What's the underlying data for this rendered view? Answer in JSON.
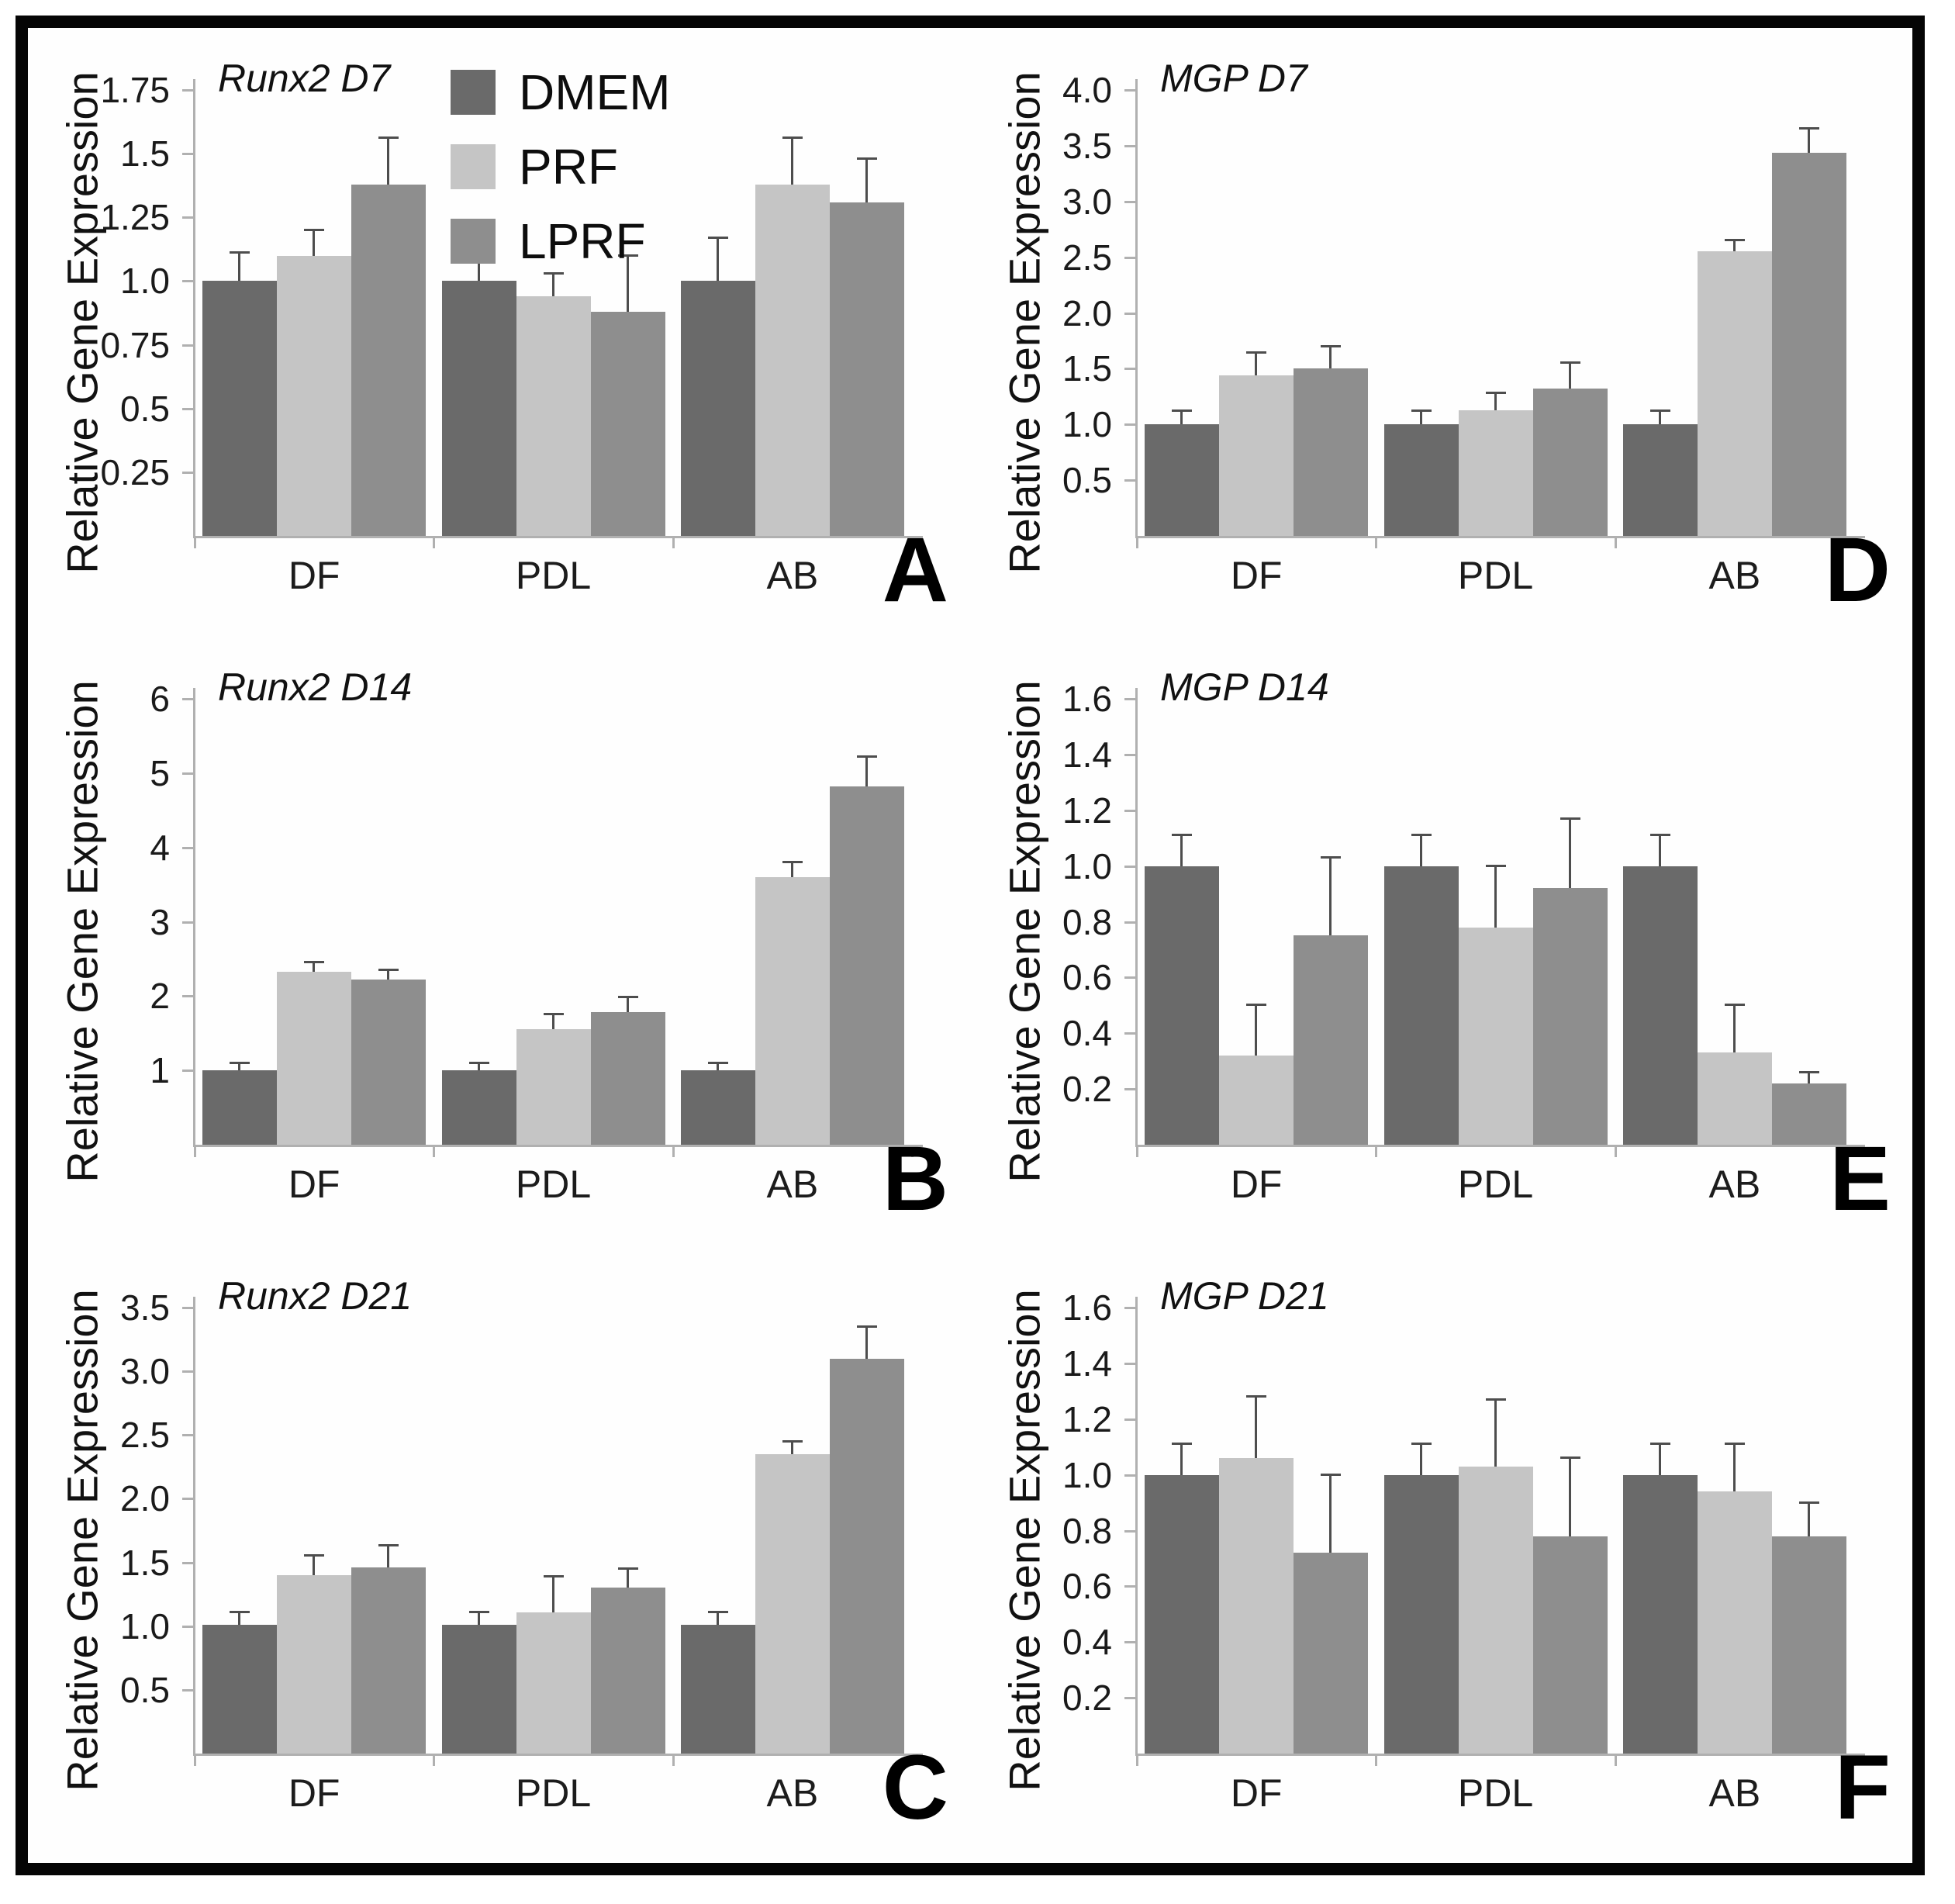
{
  "figure": {
    "ylabel": "Relative Gene Expression",
    "legend": {
      "items": [
        {
          "label": "DMEM",
          "color": "#6a6a6a"
        },
        {
          "label": "PRF",
          "color": "#c5c5c5"
        },
        {
          "label": "LPRF",
          "color": "#8e8e8e"
        }
      ]
    },
    "palette": [
      "#6a6a6a",
      "#c5c5c5",
      "#8e8e8e"
    ],
    "colors": {
      "axis": "#b0b0b0",
      "error_bar": "#4d4d4d",
      "panel_letter": "#000000",
      "frame_border": "#050505",
      "background": "#ffffff"
    }
  },
  "chart_data": [
    {
      "panel": "A",
      "type": "bar",
      "title": "Runx2 D7",
      "categories": [
        "DF",
        "PDL",
        "AB"
      ],
      "ylim": [
        0,
        1.75
      ],
      "yticks": [
        0.25,
        0.5,
        0.75,
        1.0,
        1.25,
        1.5,
        1.75
      ],
      "ytick_labels": [
        "0.25",
        "0.5",
        "0.75",
        "1.0",
        "1.25",
        "1.5",
        "1.75"
      ],
      "legend_visible": true,
      "grid": false,
      "series": [
        {
          "name": "DMEM",
          "values": [
            1.0,
            1.0,
            1.0
          ],
          "errors": [
            0.11,
            0.11,
            0.17
          ]
        },
        {
          "name": "PRF",
          "values": [
            1.1,
            0.94,
            1.38
          ],
          "errors": [
            0.1,
            0.09,
            0.18
          ]
        },
        {
          "name": "LPRF",
          "values": [
            1.38,
            0.88,
            1.31
          ],
          "errors": [
            0.18,
            0.22,
            0.17
          ]
        }
      ]
    },
    {
      "panel": "B",
      "type": "bar",
      "title": "Runx2 D14",
      "categories": [
        "DF",
        "PDL",
        "AB"
      ],
      "ylim": [
        0,
        6
      ],
      "yticks": [
        1,
        2,
        3,
        4,
        5,
        6
      ],
      "ytick_labels": [
        "1",
        "2",
        "3",
        "4",
        "5",
        "6"
      ],
      "legend_visible": false,
      "grid": false,
      "series": [
        {
          "name": "DMEM",
          "values": [
            1.0,
            1.0,
            1.0
          ],
          "errors": [
            0.1,
            0.1,
            0.1
          ]
        },
        {
          "name": "PRF",
          "values": [
            2.33,
            1.55,
            3.6
          ],
          "errors": [
            0.12,
            0.2,
            0.2
          ]
        },
        {
          "name": "LPRF",
          "values": [
            2.22,
            1.78,
            4.82
          ],
          "errors": [
            0.13,
            0.2,
            0.4
          ]
        }
      ]
    },
    {
      "panel": "C",
      "type": "bar",
      "title": "Runx2 D21",
      "categories": [
        "DF",
        "PDL",
        "AB"
      ],
      "ylim": [
        0,
        3.5
      ],
      "yticks": [
        0.5,
        1.0,
        1.5,
        2.0,
        2.5,
        3.0,
        3.5
      ],
      "ytick_labels": [
        "0.5",
        "1.0",
        "1.5",
        "2.0",
        "2.5",
        "3.0",
        "3.5"
      ],
      "legend_visible": false,
      "grid": false,
      "series": [
        {
          "name": "DMEM",
          "values": [
            1.01,
            1.01,
            1.01
          ],
          "errors": [
            0.1,
            0.1,
            0.1
          ]
        },
        {
          "name": "PRF",
          "values": [
            1.4,
            1.11,
            2.35
          ],
          "errors": [
            0.15,
            0.28,
            0.1
          ]
        },
        {
          "name": "LPRF",
          "values": [
            1.46,
            1.3,
            3.1
          ],
          "errors": [
            0.17,
            0.15,
            0.25
          ]
        }
      ]
    },
    {
      "panel": "D",
      "type": "bar",
      "title": "MGP D7",
      "categories": [
        "DF",
        "PDL",
        "AB"
      ],
      "ylim": [
        0,
        4.0
      ],
      "yticks": [
        0.5,
        1.0,
        1.5,
        2.0,
        2.5,
        3.0,
        3.5,
        4.0
      ],
      "ytick_labels": [
        "0.5",
        "1.0",
        "1.5",
        "2.0",
        "2.5",
        "3.0",
        "3.5",
        "4.0"
      ],
      "legend_visible": false,
      "grid": false,
      "series": [
        {
          "name": "DMEM",
          "values": [
            1.0,
            1.0,
            1.0
          ],
          "errors": [
            0.12,
            0.12,
            0.12
          ]
        },
        {
          "name": "PRF",
          "values": [
            1.44,
            1.13,
            2.55
          ],
          "errors": [
            0.2,
            0.15,
            0.1
          ]
        },
        {
          "name": "LPRF",
          "values": [
            1.5,
            1.32,
            3.44
          ],
          "errors": [
            0.2,
            0.23,
            0.21
          ]
        }
      ]
    },
    {
      "panel": "E",
      "type": "bar",
      "title": "MGP D14",
      "categories": [
        "DF",
        "PDL",
        "AB"
      ],
      "ylim": [
        0,
        1.6
      ],
      "yticks": [
        0.2,
        0.4,
        0.6,
        0.8,
        1.0,
        1.2,
        1.4,
        1.6
      ],
      "ytick_labels": [
        "0.2",
        "0.4",
        "0.6",
        "0.8",
        "1.0",
        "1.2",
        "1.4",
        "1.6"
      ],
      "legend_visible": false,
      "grid": false,
      "series": [
        {
          "name": "DMEM",
          "values": [
            1.0,
            1.0,
            1.0
          ],
          "errors": [
            0.11,
            0.11,
            0.11
          ]
        },
        {
          "name": "PRF",
          "values": [
            0.32,
            0.78,
            0.33
          ],
          "errors": [
            0.18,
            0.22,
            0.17
          ]
        },
        {
          "name": "LPRF",
          "values": [
            0.75,
            0.92,
            0.22
          ],
          "errors": [
            0.28,
            0.25,
            0.04
          ]
        }
      ]
    },
    {
      "panel": "F",
      "type": "bar",
      "title": "MGP D21",
      "categories": [
        "DF",
        "PDL",
        "AB"
      ],
      "ylim": [
        0,
        1.6
      ],
      "yticks": [
        0.2,
        0.4,
        0.6,
        0.8,
        1.0,
        1.2,
        1.4,
        1.6
      ],
      "ytick_labels": [
        "0.2",
        "0.4",
        "0.6",
        "0.8",
        "1.0",
        "1.2",
        "1.4",
        "1.6"
      ],
      "legend_visible": false,
      "grid": false,
      "series": [
        {
          "name": "DMEM",
          "values": [
            1.0,
            1.0,
            1.0
          ],
          "errors": [
            0.11,
            0.11,
            0.11
          ]
        },
        {
          "name": "PRF",
          "values": [
            1.06,
            1.03,
            0.94
          ],
          "errors": [
            0.22,
            0.24,
            0.17
          ]
        },
        {
          "name": "LPRF",
          "values": [
            0.72,
            0.78,
            0.78
          ],
          "errors": [
            0.28,
            0.28,
            0.12
          ]
        }
      ]
    }
  ]
}
